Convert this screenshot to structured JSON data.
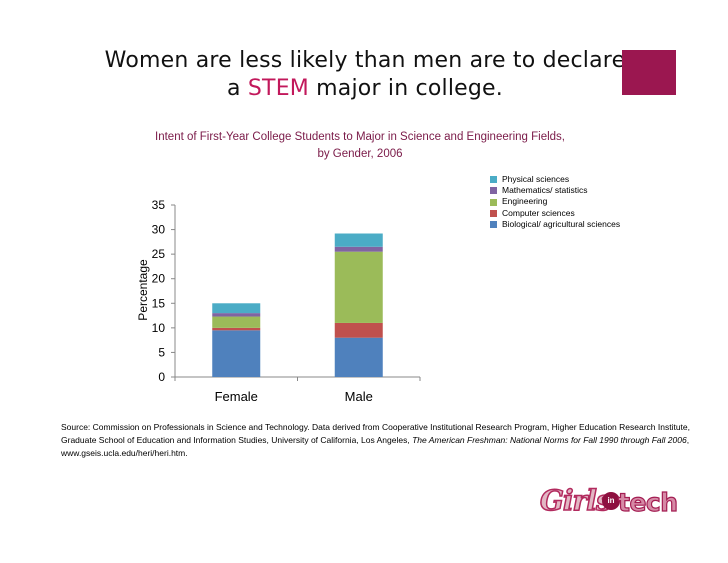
{
  "headline": {
    "line1": "Women are less likely than men are to declare",
    "line2_prefix": "a ",
    "line2_highlight": "STEM",
    "line2_suffix": " major in college."
  },
  "source": {
    "text": "Source: Commission on Professionals in Science and Technology. Data derived from Cooperative Institutional Research Program, Higher Education Research Institute, Graduate School of Education and Information Studies, University of California, Los Angeles, ",
    "italic": "The American Freshman: National Norms for Fall 1990 through Fall 2006",
    "tail": ", www.gseis.ucla.edu/heri/heri.htm."
  },
  "logo": {
    "girls": "Girls",
    "in": "in",
    "tech": "tech"
  },
  "colors": {
    "headline_highlight": "#c2185b",
    "corner_block": "#9b1750",
    "subtitle": "#7a1a48"
  },
  "chart_data": {
    "type": "bar",
    "stacked": true,
    "title": "Intent of First-Year College Students to Major in Science and Engineering Fields,",
    "subtitle": "by Gender, 2006",
    "xlabel": "",
    "ylabel": "Percentage",
    "ylim": [
      0,
      35
    ],
    "yticks": [
      0,
      5,
      10,
      15,
      20,
      25,
      30,
      35
    ],
    "categories": [
      "Female",
      "Male"
    ],
    "grid": false,
    "legend_position": "top-right",
    "series": [
      {
        "name": "Biological/ agricultural sciences",
        "color": "#4f81bd",
        "values": [
          9.5,
          8.0
        ]
      },
      {
        "name": "Computer sciences",
        "color": "#c0504d",
        "values": [
          0.5,
          3.0
        ]
      },
      {
        "name": "Engineering",
        "color": "#9bbb59",
        "values": [
          2.3,
          14.5
        ]
      },
      {
        "name": "Mathematics/ statistics",
        "color": "#8064a2",
        "values": [
          0.7,
          1.0
        ]
      },
      {
        "name": "Physical sciences",
        "color": "#4bacc6",
        "values": [
          2.0,
          2.7
        ]
      }
    ]
  }
}
